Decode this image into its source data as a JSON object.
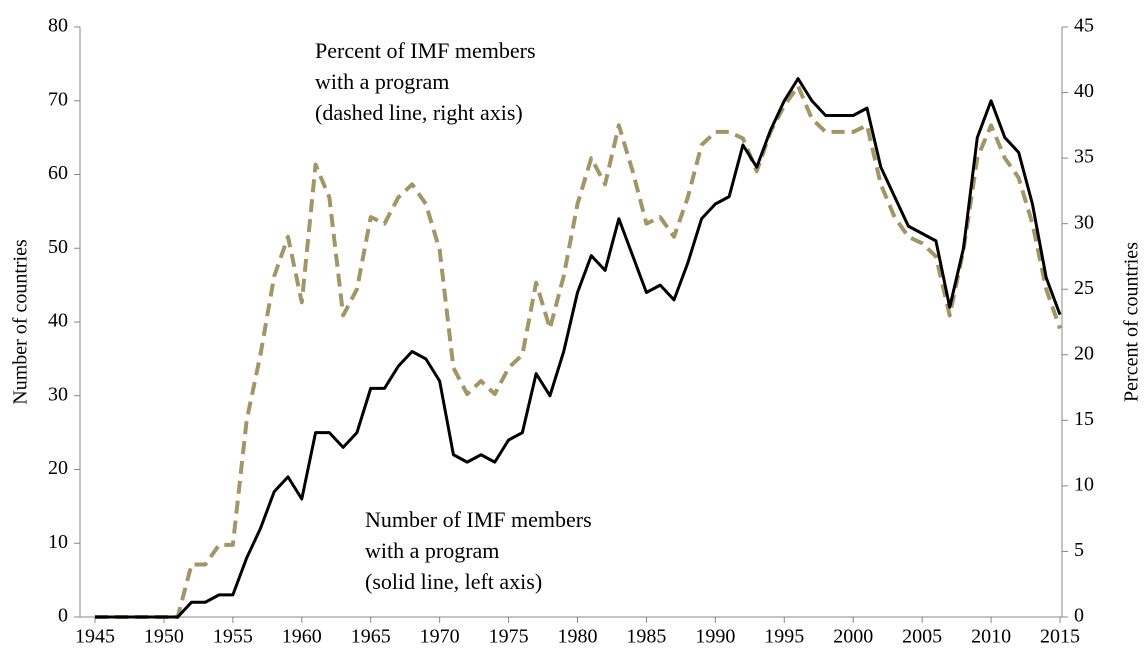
{
  "chart_data": {
    "type": "line",
    "y_label": "Number of countries",
    "y2_label": "Percent of countries",
    "annotations": [
      {
        "lines": [
          "Percent of IMF members",
          "with a program",
          "(dashed line, right axis)"
        ]
      },
      {
        "lines": [
          "Number of IMF members",
          "with a program",
          "(solid line, left axis)"
        ]
      }
    ],
    "x": [
      1945,
      1946,
      1947,
      1948,
      1949,
      1950,
      1951,
      1952,
      1953,
      1954,
      1955,
      1956,
      1957,
      1958,
      1959,
      1960,
      1961,
      1962,
      1963,
      1964,
      1965,
      1966,
      1967,
      1968,
      1969,
      1970,
      1971,
      1972,
      1973,
      1974,
      1975,
      1976,
      1977,
      1978,
      1979,
      1980,
      1981,
      1982,
      1983,
      1984,
      1985,
      1986,
      1987,
      1988,
      1989,
      1990,
      1991,
      1992,
      1993,
      1994,
      1995,
      1996,
      1997,
      1998,
      1999,
      2000,
      2001,
      2002,
      2003,
      2004,
      2005,
      2006,
      2007,
      2008,
      2009,
      2010,
      2011,
      2012,
      2013,
      2014,
      2015
    ],
    "series": [
      {
        "name": "Number of IMF members with a program",
        "color": "#000000",
        "dashed": false,
        "values": [
          0,
          0,
          0,
          0,
          0,
          0,
          0,
          2,
          2,
          3,
          3,
          8,
          12,
          17,
          19,
          16,
          25,
          25,
          23,
          25,
          31,
          31,
          34,
          36,
          35,
          32,
          22,
          21,
          22,
          21,
          24,
          25,
          33,
          30,
          36,
          44,
          49,
          47,
          54,
          49,
          44,
          45,
          43,
          48,
          54,
          56,
          57,
          64,
          61,
          66,
          70,
          73,
          70,
          68,
          68,
          68,
          69,
          61,
          57,
          53,
          52,
          51,
          42,
          50,
          65,
          70,
          65,
          63,
          56,
          46,
          41
        ]
      },
      {
        "name": "Percent of IMF members with a program",
        "color": "#a39566",
        "dashed": true,
        "axis": "y2",
        "values": [
          0,
          0,
          0,
          0,
          0,
          0,
          0,
          4,
          4,
          5.5,
          5.5,
          15,
          20,
          26,
          29,
          24,
          34.5,
          32,
          23,
          25,
          30.5,
          30,
          32,
          33,
          31.5,
          28,
          19,
          17,
          18,
          17,
          19,
          20,
          25.5,
          22,
          26,
          31.5,
          35,
          33,
          37.5,
          34,
          30,
          30.5,
          29,
          32,
          36,
          37,
          37,
          36.5,
          34,
          37,
          39,
          40.5,
          38,
          37,
          37,
          37,
          37.5,
          33,
          30.5,
          29,
          28.5,
          27.5,
          23,
          28,
          35,
          37.5,
          35,
          33.5,
          30,
          25,
          22
        ]
      }
    ],
    "xlim": [
      1945,
      2015
    ],
    "xticks": [
      1945,
      1950,
      1955,
      1960,
      1965,
      1970,
      1975,
      1980,
      1985,
      1990,
      1995,
      2000,
      2005,
      2010,
      2015
    ],
    "ylim": [
      0,
      80
    ],
    "yticks": [
      0,
      10,
      20,
      30,
      40,
      50,
      60,
      70,
      80
    ],
    "y2lim": [
      0,
      45
    ],
    "y2ticks": [
      0,
      5,
      10,
      15,
      20,
      25,
      30,
      35,
      40,
      45
    ],
    "grid": false
  }
}
